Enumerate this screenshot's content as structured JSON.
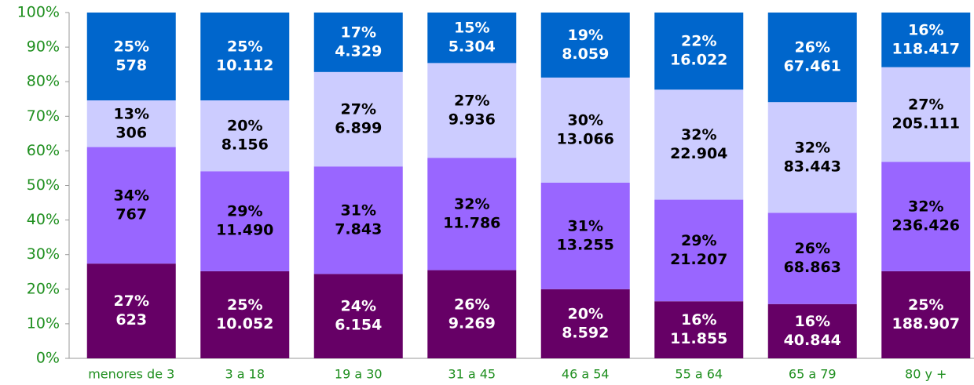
{
  "chart_data": {
    "type": "stacked_bar_percent",
    "categories": [
      "menores de 3",
      "3 a 18",
      "19 a 30",
      "31 a 45",
      "46 a 54",
      "55 a 64",
      "65 a 79",
      "80 y +"
    ],
    "series": [
      {
        "color": "#660066",
        "label_color": "#ffffff",
        "values": [
          27.4,
          25.2,
          24.4,
          25.5,
          20.0,
          16.5,
          15.7,
          25.2
        ],
        "value_labels": [
          "27%",
          "25%",
          "24%",
          "26%",
          "20%",
          "16%",
          "16%",
          "25%"
        ],
        "count_labels": [
          "623",
          "10.052",
          "6.154",
          "9.269",
          "8.592",
          "11.855",
          "40.844",
          "188.907"
        ]
      },
      {
        "color": "#9966ff",
        "label_color": "#000000",
        "values": [
          33.7,
          28.9,
          31.1,
          32.5,
          30.8,
          29.4,
          26.4,
          31.6
        ],
        "value_labels": [
          "34%",
          "29%",
          "31%",
          "32%",
          "31%",
          "29%",
          "26%",
          "32%"
        ],
        "count_labels": [
          "767",
          "11.490",
          "7.843",
          "11.786",
          "13.255",
          "21.207",
          "68.863",
          "236.426"
        ]
      },
      {
        "color": "#ccccff",
        "label_color": "#000000",
        "values": [
          13.5,
          20.5,
          27.3,
          27.4,
          30.4,
          31.8,
          32.0,
          27.4
        ],
        "value_labels": [
          "13%",
          "20%",
          "27%",
          "27%",
          "30%",
          "32%",
          "32%",
          "27%"
        ],
        "count_labels": [
          "306",
          "8.156",
          "6.899",
          "9.936",
          "13.066",
          "22.904",
          "83.443",
          "205.111"
        ]
      },
      {
        "color": "#0066cc",
        "label_color": "#ffffff",
        "values": [
          25.4,
          25.4,
          17.2,
          14.6,
          18.8,
          22.3,
          25.9,
          15.8
        ],
        "value_labels": [
          "25%",
          "25%",
          "17%",
          "15%",
          "19%",
          "22%",
          "26%",
          "16%"
        ],
        "count_labels": [
          "578",
          "10.112",
          "4.329",
          "5.304",
          "8.059",
          "16.022",
          "67.461",
          "118.417"
        ]
      }
    ],
    "ylim": [
      0,
      100
    ],
    "yticks": [
      {
        "value": 0,
        "label": "0%"
      },
      {
        "value": 10,
        "label": "10%"
      },
      {
        "value": 20,
        "label": "20%"
      },
      {
        "value": 30,
        "label": "30%"
      },
      {
        "value": 40,
        "label": "40%"
      },
      {
        "value": 50,
        "label": "50%"
      },
      {
        "value": 60,
        "label": "60%"
      },
      {
        "value": 70,
        "label": "70%"
      },
      {
        "value": 80,
        "label": "80%"
      },
      {
        "value": 90,
        "label": "90%"
      },
      {
        "value": 100,
        "label": "100%"
      }
    ]
  }
}
